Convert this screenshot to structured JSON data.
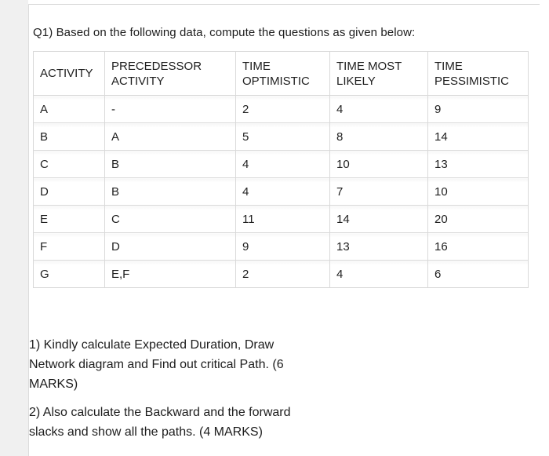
{
  "header": {
    "question_intro": "Q1) Based on the following data, compute the questions as given below:"
  },
  "table": {
    "columns": [
      "ACTIVITY",
      "PRECEDESSOR ACTIVITY",
      "TIME OPTIMISTIC",
      "TIME MOST LIKELY",
      "TIME PESSIMISTIC"
    ],
    "rows": [
      {
        "activity": "A",
        "predecessor": "-",
        "time_optimistic": "2",
        "time_most_likely": "4",
        "time_pessimistic": "9"
      },
      {
        "activity": "B",
        "predecessor": "A",
        "time_optimistic": "5",
        "time_most_likely": "8",
        "time_pessimistic": "14"
      },
      {
        "activity": "C",
        "predecessor": "B",
        "time_optimistic": "4",
        "time_most_likely": "10",
        "time_pessimistic": "13"
      },
      {
        "activity": "D",
        "predecessor": "B",
        "time_optimistic": "4",
        "time_most_likely": "7",
        "time_pessimistic": "10"
      },
      {
        "activity": "E",
        "predecessor": "C",
        "time_optimistic": "11",
        "time_most_likely": "14",
        "time_pessimistic": "20"
      },
      {
        "activity": "F",
        "predecessor": "D",
        "time_optimistic": "9",
        "time_most_likely": "13",
        "time_pessimistic": "16"
      },
      {
        "activity": "G",
        "predecessor": "E,F",
        "time_optimistic": "2",
        "time_most_likely": "4",
        "time_pessimistic": "6"
      }
    ]
  },
  "questions": [
    "1) Kindly calculate Expected Duration, Draw Network diagram and Find out critical Path. (6 MARKS)",
    "2) Also calculate the Backward and the forward slacks and show all the paths. (4 MARKS)"
  ],
  "colors": {
    "page_background": "#ffffff",
    "left_strip": "#f0f0f0",
    "page_border": "#d5d5d5",
    "table_border": "#d9d9d9",
    "text": "#1c1c1c"
  }
}
